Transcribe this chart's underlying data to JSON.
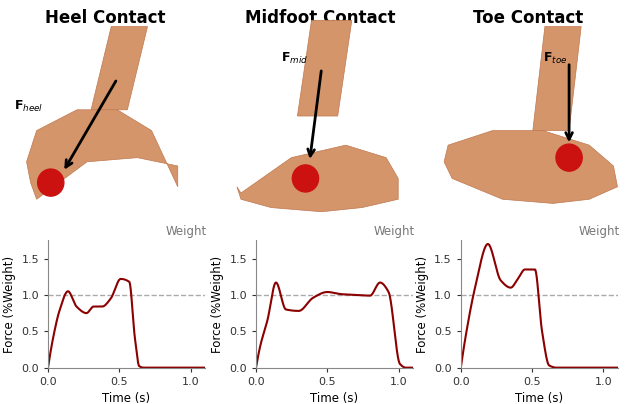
{
  "titles": [
    "Heel Contact",
    "Midfoot Contact",
    "Toe Contact"
  ],
  "line_color": "#8B0000",
  "dashed_color": "#aaaaaa",
  "ylabel": "Force (%Weight)",
  "xlabel": "Time (s)",
  "weight_label": "Weight",
  "ylim": [
    0,
    1.75
  ],
  "xlim": [
    0,
    1.1
  ],
  "yticks": [
    0,
    0.5,
    1.0,
    1.5
  ],
  "xticks": [
    0,
    0.5,
    1.0
  ],
  "title_fontsize": 12,
  "label_fontsize": 8.5,
  "tick_fontsize": 8,
  "weight_label_fontsize": 8.5,
  "background_color": "#ffffff",
  "fig_width": 6.4,
  "fig_height": 4.04,
  "dpi": 100,
  "heel_curve": {
    "t": [
      0,
      0.04,
      0.08,
      0.14,
      0.2,
      0.27,
      0.32,
      0.38,
      0.44,
      0.51,
      0.57,
      0.61,
      0.64,
      0.67,
      1.1
    ],
    "y": [
      0,
      0.45,
      0.78,
      1.05,
      0.84,
      0.75,
      0.84,
      0.84,
      0.95,
      1.22,
      1.18,
      0.4,
      0.02,
      0.0,
      0.0
    ]
  },
  "midfoot_curve": {
    "t": [
      0,
      0.03,
      0.08,
      0.14,
      0.21,
      0.3,
      0.4,
      0.5,
      0.6,
      0.7,
      0.8,
      0.87,
      0.93,
      1.01,
      1.05,
      1.1
    ],
    "y": [
      0,
      0.3,
      0.65,
      1.17,
      0.8,
      0.78,
      0.96,
      1.04,
      1.01,
      1.0,
      0.99,
      1.17,
      1.04,
      0.05,
      0.0,
      0.0
    ]
  },
  "toe_curve": {
    "t": [
      0,
      0.04,
      0.1,
      0.19,
      0.28,
      0.35,
      0.4,
      0.45,
      0.52,
      0.57,
      0.62,
      0.67,
      1.1
    ],
    "y": [
      0,
      0.5,
      1.1,
      1.7,
      1.2,
      1.1,
      1.22,
      1.35,
      1.35,
      0.5,
      0.03,
      0.0,
      0.0
    ]
  }
}
